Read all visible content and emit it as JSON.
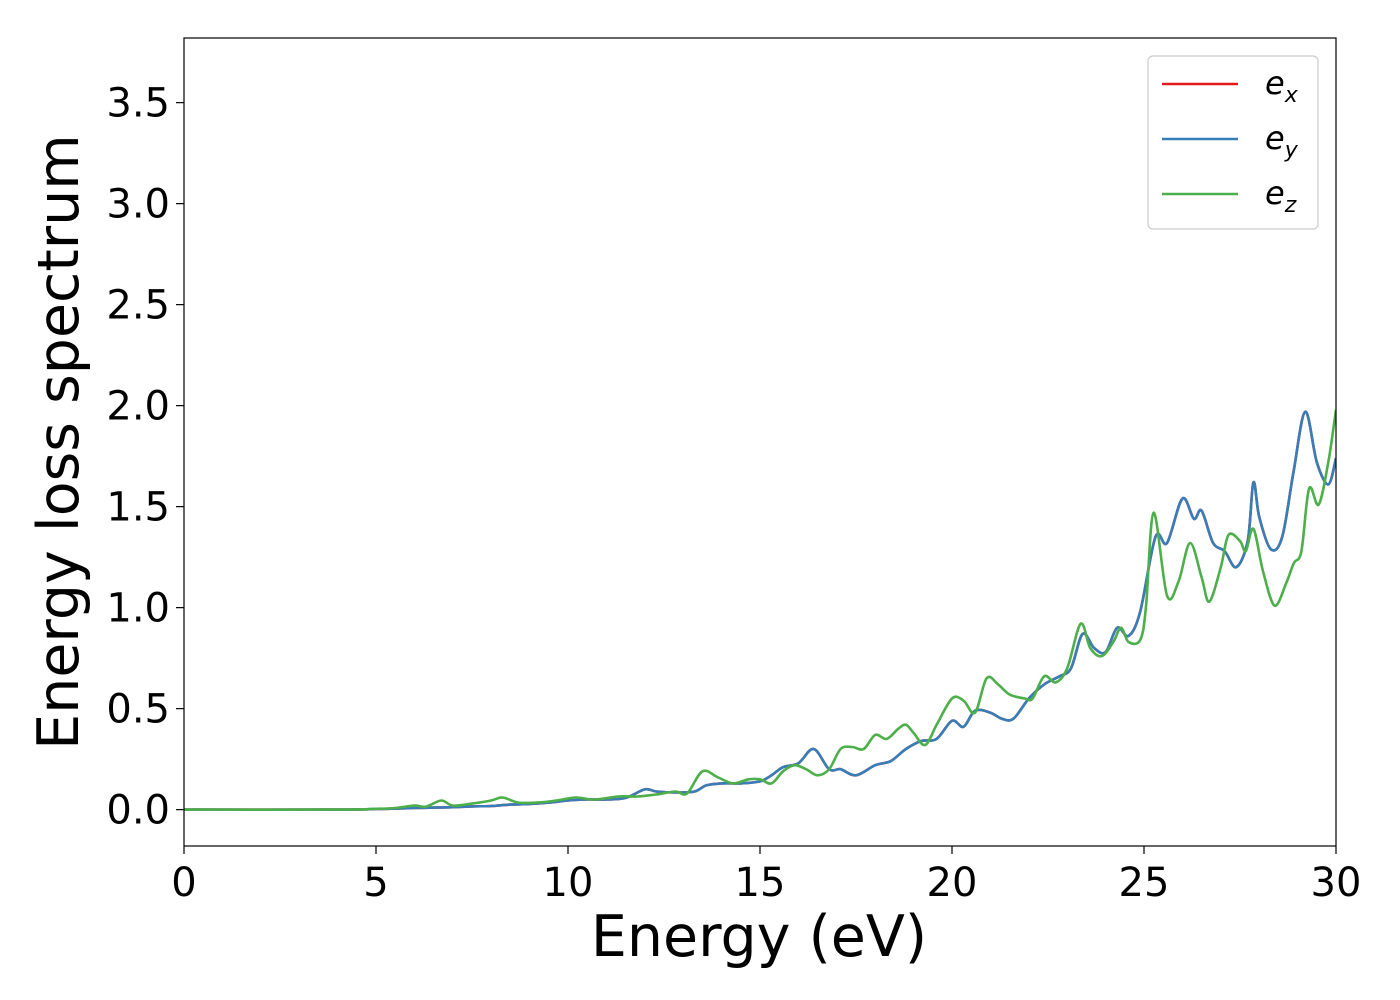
{
  "chart_data": {
    "type": "line",
    "title": "",
    "xlabel": "Energy (eV)",
    "ylabel": "Energy loss spectrum",
    "xlim": [
      0,
      30
    ],
    "ylim": [
      -0.18,
      3.82
    ],
    "xticks": [
      0,
      5,
      10,
      15,
      20,
      25,
      30
    ],
    "xtick_labels": [
      "0",
      "5",
      "10",
      "15",
      "20",
      "25",
      "30"
    ],
    "yticks": [
      0.0,
      0.5,
      1.0,
      1.5,
      2.0,
      2.5,
      3.0,
      3.5
    ],
    "ytick_labels": [
      "0.0",
      "0.5",
      "1.0",
      "1.5",
      "2.0",
      "2.5",
      "3.0",
      "3.5"
    ],
    "grid": false,
    "legend_position": "top-right",
    "series": [
      {
        "name": "e",
        "subscript": "x",
        "color": "#e41a1c",
        "points": [
          [
            0,
            0
          ],
          [
            4,
            0
          ],
          [
            5,
            0.003
          ],
          [
            5.5,
            0.005
          ],
          [
            6,
            0.008
          ],
          [
            6.5,
            0.01
          ],
          [
            7,
            0.012
          ],
          [
            7.5,
            0.016
          ],
          [
            8,
            0.018
          ],
          [
            8.5,
            0.025
          ],
          [
            9,
            0.028
          ],
          [
            9.5,
            0.035
          ],
          [
            10,
            0.045
          ],
          [
            10.5,
            0.05
          ],
          [
            11,
            0.05
          ],
          [
            11.5,
            0.058
          ],
          [
            12,
            0.1
          ],
          [
            12.3,
            0.09
          ],
          [
            12.8,
            0.085
          ],
          [
            13.3,
            0.09
          ],
          [
            13.6,
            0.12
          ],
          [
            14,
            0.13
          ],
          [
            14.5,
            0.13
          ],
          [
            15,
            0.14
          ],
          [
            15.3,
            0.17
          ],
          [
            15.6,
            0.21
          ],
          [
            16,
            0.23
          ],
          [
            16.4,
            0.3
          ],
          [
            16.8,
            0.2
          ],
          [
            17.1,
            0.2
          ],
          [
            17.5,
            0.17
          ],
          [
            18,
            0.22
          ],
          [
            18.4,
            0.24
          ],
          [
            18.8,
            0.3
          ],
          [
            19.2,
            0.34
          ],
          [
            19.6,
            0.35
          ],
          [
            20,
            0.44
          ],
          [
            20.3,
            0.41
          ],
          [
            20.6,
            0.49
          ],
          [
            21,
            0.48
          ],
          [
            21.3,
            0.45
          ],
          [
            21.6,
            0.45
          ],
          [
            22,
            0.55
          ],
          [
            22.4,
            0.62
          ],
          [
            22.8,
            0.66
          ],
          [
            23.1,
            0.7
          ],
          [
            23.4,
            0.87
          ],
          [
            23.7,
            0.8
          ],
          [
            24,
            0.78
          ],
          [
            24.3,
            0.9
          ],
          [
            24.6,
            0.86
          ],
          [
            24.9,
            0.98
          ],
          [
            25.3,
            1.35
          ],
          [
            25.6,
            1.32
          ],
          [
            26,
            1.54
          ],
          [
            26.3,
            1.44
          ],
          [
            26.5,
            1.48
          ],
          [
            26.8,
            1.32
          ],
          [
            27.1,
            1.28
          ],
          [
            27.4,
            1.2
          ],
          [
            27.7,
            1.33
          ],
          [
            27.85,
            1.62
          ],
          [
            28,
            1.45
          ],
          [
            28.3,
            1.29
          ],
          [
            28.6,
            1.35
          ],
          [
            28.9,
            1.68
          ],
          [
            29.2,
            1.97
          ],
          [
            29.5,
            1.72
          ],
          [
            29.8,
            1.61
          ],
          [
            30,
            1.74
          ]
        ]
      },
      {
        "name": "e",
        "subscript": "y",
        "color": "#377eb8",
        "points": [
          [
            0,
            0
          ],
          [
            4,
            0
          ],
          [
            5,
            0.003
          ],
          [
            5.5,
            0.005
          ],
          [
            6,
            0.008
          ],
          [
            6.5,
            0.01
          ],
          [
            7,
            0.012
          ],
          [
            7.5,
            0.016
          ],
          [
            8,
            0.018
          ],
          [
            8.5,
            0.025
          ],
          [
            9,
            0.028
          ],
          [
            9.5,
            0.035
          ],
          [
            10,
            0.045
          ],
          [
            10.5,
            0.05
          ],
          [
            11,
            0.05
          ],
          [
            11.5,
            0.058
          ],
          [
            12,
            0.1
          ],
          [
            12.3,
            0.09
          ],
          [
            12.8,
            0.085
          ],
          [
            13.3,
            0.09
          ],
          [
            13.6,
            0.12
          ],
          [
            14,
            0.13
          ],
          [
            14.5,
            0.13
          ],
          [
            15,
            0.14
          ],
          [
            15.3,
            0.17
          ],
          [
            15.6,
            0.21
          ],
          [
            16,
            0.23
          ],
          [
            16.4,
            0.3
          ],
          [
            16.8,
            0.2
          ],
          [
            17.1,
            0.2
          ],
          [
            17.5,
            0.17
          ],
          [
            18,
            0.22
          ],
          [
            18.4,
            0.24
          ],
          [
            18.8,
            0.3
          ],
          [
            19.2,
            0.34
          ],
          [
            19.6,
            0.35
          ],
          [
            20,
            0.44
          ],
          [
            20.3,
            0.41
          ],
          [
            20.6,
            0.49
          ],
          [
            21,
            0.48
          ],
          [
            21.3,
            0.45
          ],
          [
            21.6,
            0.45
          ],
          [
            22,
            0.55
          ],
          [
            22.4,
            0.62
          ],
          [
            22.8,
            0.66
          ],
          [
            23.1,
            0.7
          ],
          [
            23.4,
            0.87
          ],
          [
            23.7,
            0.8
          ],
          [
            24,
            0.78
          ],
          [
            24.3,
            0.9
          ],
          [
            24.6,
            0.86
          ],
          [
            24.9,
            0.98
          ],
          [
            25.3,
            1.35
          ],
          [
            25.6,
            1.32
          ],
          [
            26,
            1.54
          ],
          [
            26.3,
            1.44
          ],
          [
            26.5,
            1.48
          ],
          [
            26.8,
            1.32
          ],
          [
            27.1,
            1.28
          ],
          [
            27.4,
            1.2
          ],
          [
            27.7,
            1.33
          ],
          [
            27.85,
            1.62
          ],
          [
            28,
            1.45
          ],
          [
            28.3,
            1.29
          ],
          [
            28.6,
            1.35
          ],
          [
            28.9,
            1.68
          ],
          [
            29.2,
            1.97
          ],
          [
            29.5,
            1.72
          ],
          [
            29.8,
            1.61
          ],
          [
            30,
            1.74
          ]
        ]
      },
      {
        "name": "e",
        "subscript": "z",
        "color": "#4daf4a",
        "points": [
          [
            0,
            0
          ],
          [
            4,
            0
          ],
          [
            5,
            0.004
          ],
          [
            5.5,
            0.008
          ],
          [
            6,
            0.02
          ],
          [
            6.3,
            0.015
          ],
          [
            6.7,
            0.045
          ],
          [
            7,
            0.02
          ],
          [
            7.5,
            0.03
          ],
          [
            8,
            0.045
          ],
          [
            8.3,
            0.06
          ],
          [
            8.7,
            0.035
          ],
          [
            9.2,
            0.035
          ],
          [
            9.7,
            0.045
          ],
          [
            10.2,
            0.06
          ],
          [
            10.7,
            0.05
          ],
          [
            11.3,
            0.065
          ],
          [
            11.8,
            0.065
          ],
          [
            12.3,
            0.075
          ],
          [
            12.8,
            0.09
          ],
          [
            13.1,
            0.08
          ],
          [
            13.5,
            0.19
          ],
          [
            13.9,
            0.16
          ],
          [
            14.3,
            0.13
          ],
          [
            14.7,
            0.15
          ],
          [
            15,
            0.15
          ],
          [
            15.3,
            0.13
          ],
          [
            15.6,
            0.19
          ],
          [
            15.9,
            0.22
          ],
          [
            16.2,
            0.2
          ],
          [
            16.5,
            0.17
          ],
          [
            16.8,
            0.2
          ],
          [
            17.1,
            0.3
          ],
          [
            17.4,
            0.31
          ],
          [
            17.7,
            0.3
          ],
          [
            18,
            0.37
          ],
          [
            18.3,
            0.35
          ],
          [
            18.6,
            0.4
          ],
          [
            18.8,
            0.42
          ],
          [
            19,
            0.38
          ],
          [
            19.3,
            0.32
          ],
          [
            19.6,
            0.42
          ],
          [
            20,
            0.55
          ],
          [
            20.3,
            0.54
          ],
          [
            20.6,
            0.48
          ],
          [
            20.9,
            0.65
          ],
          [
            21.2,
            0.62
          ],
          [
            21.5,
            0.57
          ],
          [
            21.9,
            0.55
          ],
          [
            22.1,
            0.55
          ],
          [
            22.4,
            0.66
          ],
          [
            22.7,
            0.63
          ],
          [
            23,
            0.7
          ],
          [
            23.35,
            0.92
          ],
          [
            23.6,
            0.8
          ],
          [
            23.9,
            0.76
          ],
          [
            24.2,
            0.83
          ],
          [
            24.4,
            0.9
          ],
          [
            24.6,
            0.83
          ],
          [
            24.9,
            0.84
          ],
          [
            25.05,
            1.0
          ],
          [
            25.25,
            1.47
          ],
          [
            25.6,
            1.06
          ],
          [
            25.9,
            1.13
          ],
          [
            26.2,
            1.32
          ],
          [
            26.5,
            1.15
          ],
          [
            26.7,
            1.03
          ],
          [
            27,
            1.2
          ],
          [
            27.2,
            1.36
          ],
          [
            27.5,
            1.33
          ],
          [
            27.65,
            1.28
          ],
          [
            27.85,
            1.39
          ],
          [
            28.1,
            1.18
          ],
          [
            28.4,
            1.01
          ],
          [
            28.7,
            1.12
          ],
          [
            28.9,
            1.22
          ],
          [
            29.1,
            1.28
          ],
          [
            29.3,
            1.59
          ],
          [
            29.55,
            1.51
          ],
          [
            29.8,
            1.72
          ],
          [
            30,
            1.98
          ]
        ]
      }
    ]
  }
}
